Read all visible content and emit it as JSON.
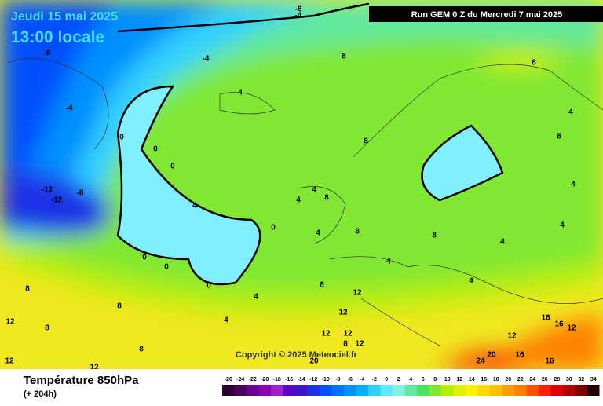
{
  "header": {
    "date": "Jeudi 15 mai 2025",
    "time": "13:00 locale",
    "run": "Run GEM 0 Z du Mercredi 7 mai 2025"
  },
  "footer": {
    "title": "Température 850hPa",
    "lead": "(+ 204h)",
    "copyright": "Copyright © 2025 Meteociel.fr"
  },
  "contour_labels": [
    -8,
    -4,
    -4,
    -8,
    -4,
    0,
    0,
    0,
    -12,
    -12,
    -8,
    4,
    4,
    0,
    0,
    4,
    0,
    8,
    4,
    8,
    8,
    8,
    4,
    4,
    4,
    4,
    0,
    8,
    8,
    4,
    4,
    4,
    8,
    4,
    8,
    4,
    8,
    12,
    12,
    12,
    12,
    8,
    8,
    12,
    12,
    8,
    12,
    16,
    16,
    12,
    24,
    20,
    16,
    20,
    16,
    12,
    8,
    12
  ],
  "colorbar": {
    "levels": [
      -26,
      -24,
      -22,
      -20,
      -18,
      -16,
      -14,
      -12,
      -10,
      -8,
      -6,
      -4,
      -2,
      0,
      2,
      4,
      6,
      8,
      10,
      12,
      14,
      16,
      18,
      20,
      22,
      24,
      26,
      28,
      30,
      32,
      34
    ],
    "colors": [
      "#2b0033",
      "#4b0060",
      "#6a0090",
      "#8a00b0",
      "#a020d0",
      "#5a00c8",
      "#3c14d0",
      "#1e32e6",
      "#0050ff",
      "#0070ff",
      "#0090ff",
      "#00b0ff",
      "#30d0ff",
      "#60e8ff",
      "#80f0e0",
      "#60e8a0",
      "#50e060",
      "#80e830",
      "#b0f000",
      "#e0f000",
      "#fff000",
      "#ffd800",
      "#ffc000",
      "#ffa000",
      "#ff8000",
      "#ff5000",
      "#ff2000",
      "#e00000",
      "#b00000",
      "#800000",
      "#200000"
    ]
  }
}
